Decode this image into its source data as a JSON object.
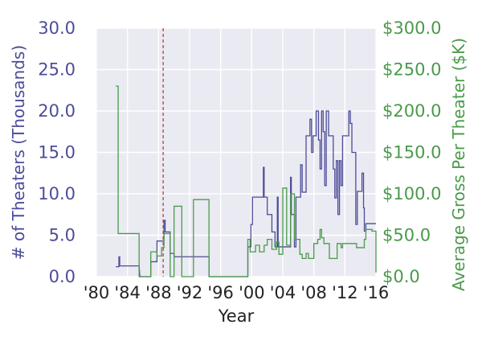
{
  "chart_data": {
    "type": "line",
    "title": "",
    "xlabel": "Year",
    "ylabel_left": "# of Theaters (Thousands)",
    "ylabel_right": "Average Gross Per Theater ($K)",
    "xlim": [
      1980,
      2016
    ],
    "ylim_left": [
      0,
      30
    ],
    "ylim_right": [
      0,
      300
    ],
    "x_ticks": [
      1980,
      1984,
      1988,
      1992,
      1996,
      2000,
      2004,
      2008,
      2012,
      2016
    ],
    "x_tick_labels": [
      "'80",
      "'84",
      "'88",
      "'92",
      "'96",
      "'00",
      "'04",
      "'08",
      "'12",
      "'16"
    ],
    "y_left_ticks": [
      0,
      5,
      10,
      15,
      20,
      25,
      30
    ],
    "y_left_tick_labels": [
      "0.0",
      "5.0",
      "10.0",
      "15.0",
      "20.0",
      "25.0",
      "30.0"
    ],
    "y_right_ticks": [
      0,
      50,
      100,
      150,
      200,
      250,
      300
    ],
    "y_right_tick_labels": [
      "$0.0",
      "$50.0",
      "$100.0",
      "$150.0",
      "$200.0",
      "$250.0",
      "$300.0"
    ],
    "grid": true,
    "colors": {
      "theaters": "#4c4c9a",
      "gross": "#4a9a4a",
      "vline": "#b05050",
      "plot_bg": "#eaeaf2",
      "left_axis_text": "#4c4c9a",
      "right_axis_text": "#4a9a4a"
    },
    "reference_line": {
      "x": 1988.6,
      "style": "dashed"
    },
    "series": [
      {
        "axis": "left",
        "step": true,
        "points": [
          [
            1982.5,
            1.2
          ],
          [
            1982.9,
            1.2
          ],
          [
            1982.9,
            2.4
          ],
          [
            1983.0,
            2.4
          ],
          [
            1983.0,
            1.3
          ],
          [
            1985.5,
            1.3
          ],
          [
            1985.6,
            0
          ],
          [
            1987.0,
            0
          ],
          [
            1987.0,
            1.8
          ],
          [
            1987.8,
            1.8
          ],
          [
            1987.8,
            4.3
          ],
          [
            1988.7,
            4.3
          ],
          [
            1988.7,
            6.8
          ],
          [
            1988.85,
            6.8
          ],
          [
            1988.85,
            5.4
          ],
          [
            1989.5,
            5.4
          ],
          [
            1989.5,
            2.8
          ],
          [
            1990.0,
            2.8
          ],
          [
            1990.0,
            2.4
          ],
          [
            1994.5,
            2.4
          ],
          [
            1994.5,
            0
          ],
          [
            1999.5,
            0
          ],
          [
            1999.5,
            3.6
          ],
          [
            1999.9,
            3.6
          ],
          [
            1999.9,
            6.3
          ],
          [
            2000.1,
            6.3
          ],
          [
            2000.1,
            9.6
          ],
          [
            2001.5,
            9.6
          ],
          [
            2001.5,
            13.2
          ],
          [
            2001.6,
            13.2
          ],
          [
            2001.6,
            9.6
          ],
          [
            2002.0,
            9.6
          ],
          [
            2002.0,
            7.5
          ],
          [
            2002.6,
            7.5
          ],
          [
            2002.6,
            5.4
          ],
          [
            2003.0,
            5.4
          ],
          [
            2003.0,
            3.6
          ],
          [
            2003.3,
            3.6
          ],
          [
            2003.3,
            9.6
          ],
          [
            2003.4,
            9.6
          ],
          [
            2003.4,
            3.6
          ],
          [
            2005.0,
            3.6
          ],
          [
            2005.0,
            12.0
          ],
          [
            2005.1,
            12.0
          ],
          [
            2005.1,
            7.5
          ],
          [
            2005.5,
            7.5
          ],
          [
            2005.5,
            3.6
          ],
          [
            2005.7,
            3.6
          ],
          [
            2005.7,
            9.6
          ],
          [
            2006.3,
            9.6
          ],
          [
            2006.3,
            13.5
          ],
          [
            2006.5,
            13.5
          ],
          [
            2006.5,
            10.2
          ],
          [
            2007.0,
            10.2
          ],
          [
            2007.0,
            17.0
          ],
          [
            2007.5,
            17.0
          ],
          [
            2007.5,
            19.0
          ],
          [
            2007.7,
            19.0
          ],
          [
            2007.7,
            15.0
          ],
          [
            2007.9,
            15.0
          ],
          [
            2007.9,
            17.0
          ],
          [
            2008.3,
            17.0
          ],
          [
            2008.3,
            20.0
          ],
          [
            2008.6,
            20.0
          ],
          [
            2008.6,
            16.5
          ],
          [
            2008.8,
            16.5
          ],
          [
            2008.8,
            13.0
          ],
          [
            2009.0,
            13.0
          ],
          [
            2009.0,
            20.0
          ],
          [
            2009.2,
            20.0
          ],
          [
            2009.2,
            17.5
          ],
          [
            2009.4,
            17.5
          ],
          [
            2009.4,
            11.0
          ],
          [
            2009.6,
            11.0
          ],
          [
            2009.6,
            20.0
          ],
          [
            2009.9,
            20.0
          ],
          [
            2009.9,
            17.0
          ],
          [
            2010.5,
            17.0
          ],
          [
            2010.5,
            13.0
          ],
          [
            2010.7,
            13.0
          ],
          [
            2010.7,
            9.5
          ],
          [
            2010.9,
            9.5
          ],
          [
            2010.9,
            14.0
          ],
          [
            2011.1,
            14.0
          ],
          [
            2011.1,
            7.5
          ],
          [
            2011.3,
            7.5
          ],
          [
            2011.3,
            14.0
          ],
          [
            2011.5,
            14.0
          ],
          [
            2011.5,
            11.0
          ],
          [
            2011.7,
            11.0
          ],
          [
            2011.7,
            17.0
          ],
          [
            2012.5,
            17.0
          ],
          [
            2012.5,
            20.0
          ],
          [
            2012.7,
            20.0
          ],
          [
            2012.7,
            18.5
          ],
          [
            2012.9,
            18.5
          ],
          [
            2012.9,
            15.0
          ],
          [
            2013.4,
            15.0
          ],
          [
            2013.4,
            6.3
          ],
          [
            2013.6,
            6.3
          ],
          [
            2013.6,
            10.3
          ],
          [
            2014.2,
            10.3
          ],
          [
            2014.2,
            12.5
          ],
          [
            2014.4,
            12.5
          ],
          [
            2014.4,
            8.3
          ],
          [
            2014.5,
            8.3
          ],
          [
            2014.5,
            5.5
          ],
          [
            2014.7,
            5.5
          ],
          [
            2014.7,
            6.4
          ],
          [
            2016.0,
            6.4
          ]
        ]
      },
      {
        "axis": "right",
        "step": true,
        "points": [
          [
            1982.5,
            230
          ],
          [
            1982.8,
            230
          ],
          [
            1982.8,
            52
          ],
          [
            1985.5,
            52
          ],
          [
            1985.5,
            0
          ],
          [
            1987.0,
            0
          ],
          [
            1987.0,
            30
          ],
          [
            1987.8,
            30
          ],
          [
            1987.8,
            25
          ],
          [
            1988.4,
            25
          ],
          [
            1988.4,
            35
          ],
          [
            1988.7,
            35
          ],
          [
            1988.7,
            52
          ],
          [
            1989.5,
            52
          ],
          [
            1989.5,
            0
          ],
          [
            1990.0,
            0
          ],
          [
            1990.0,
            85
          ],
          [
            1991.0,
            85
          ],
          [
            1991.0,
            0
          ],
          [
            1992.5,
            0
          ],
          [
            1992.5,
            93
          ],
          [
            1994.5,
            93
          ],
          [
            1994.5,
            0
          ],
          [
            1999.5,
            0
          ],
          [
            1999.5,
            45
          ],
          [
            1999.8,
            45
          ],
          [
            1999.8,
            30
          ],
          [
            2000.5,
            30
          ],
          [
            2000.5,
            38
          ],
          [
            2001.0,
            38
          ],
          [
            2001.0,
            30
          ],
          [
            2001.6,
            30
          ],
          [
            2001.6,
            38
          ],
          [
            2002.0,
            38
          ],
          [
            2002.0,
            45
          ],
          [
            2002.6,
            45
          ],
          [
            2002.6,
            33
          ],
          [
            2003.2,
            33
          ],
          [
            2003.2,
            42
          ],
          [
            2003.5,
            42
          ],
          [
            2003.5,
            27
          ],
          [
            2004.0,
            27
          ],
          [
            2004.0,
            107
          ],
          [
            2004.5,
            107
          ],
          [
            2004.5,
            38
          ],
          [
            2005.0,
            38
          ],
          [
            2005.0,
            100
          ],
          [
            2005.5,
            100
          ],
          [
            2005.5,
            45
          ],
          [
            2006.2,
            45
          ],
          [
            2006.2,
            27
          ],
          [
            2006.5,
            27
          ],
          [
            2006.5,
            22
          ],
          [
            2007.0,
            22
          ],
          [
            2007.0,
            28
          ],
          [
            2007.3,
            28
          ],
          [
            2007.3,
            22
          ],
          [
            2008.0,
            22
          ],
          [
            2008.0,
            40
          ],
          [
            2008.5,
            40
          ],
          [
            2008.5,
            45
          ],
          [
            2008.8,
            45
          ],
          [
            2008.8,
            57
          ],
          [
            2009.0,
            57
          ],
          [
            2009.0,
            47
          ],
          [
            2009.3,
            47
          ],
          [
            2009.3,
            40
          ],
          [
            2010.0,
            40
          ],
          [
            2010.0,
            22
          ],
          [
            2011.0,
            22
          ],
          [
            2011.0,
            40
          ],
          [
            2011.5,
            40
          ],
          [
            2011.5,
            35
          ],
          [
            2011.7,
            35
          ],
          [
            2011.7,
            40
          ],
          [
            2013.5,
            40
          ],
          [
            2013.5,
            35
          ],
          [
            2014.5,
            35
          ],
          [
            2014.5,
            45
          ],
          [
            2014.7,
            45
          ],
          [
            2014.7,
            57
          ],
          [
            2015.5,
            57
          ],
          [
            2015.5,
            55
          ],
          [
            2016.0,
            55
          ],
          [
            2016.0,
            5
          ]
        ]
      }
    ]
  }
}
